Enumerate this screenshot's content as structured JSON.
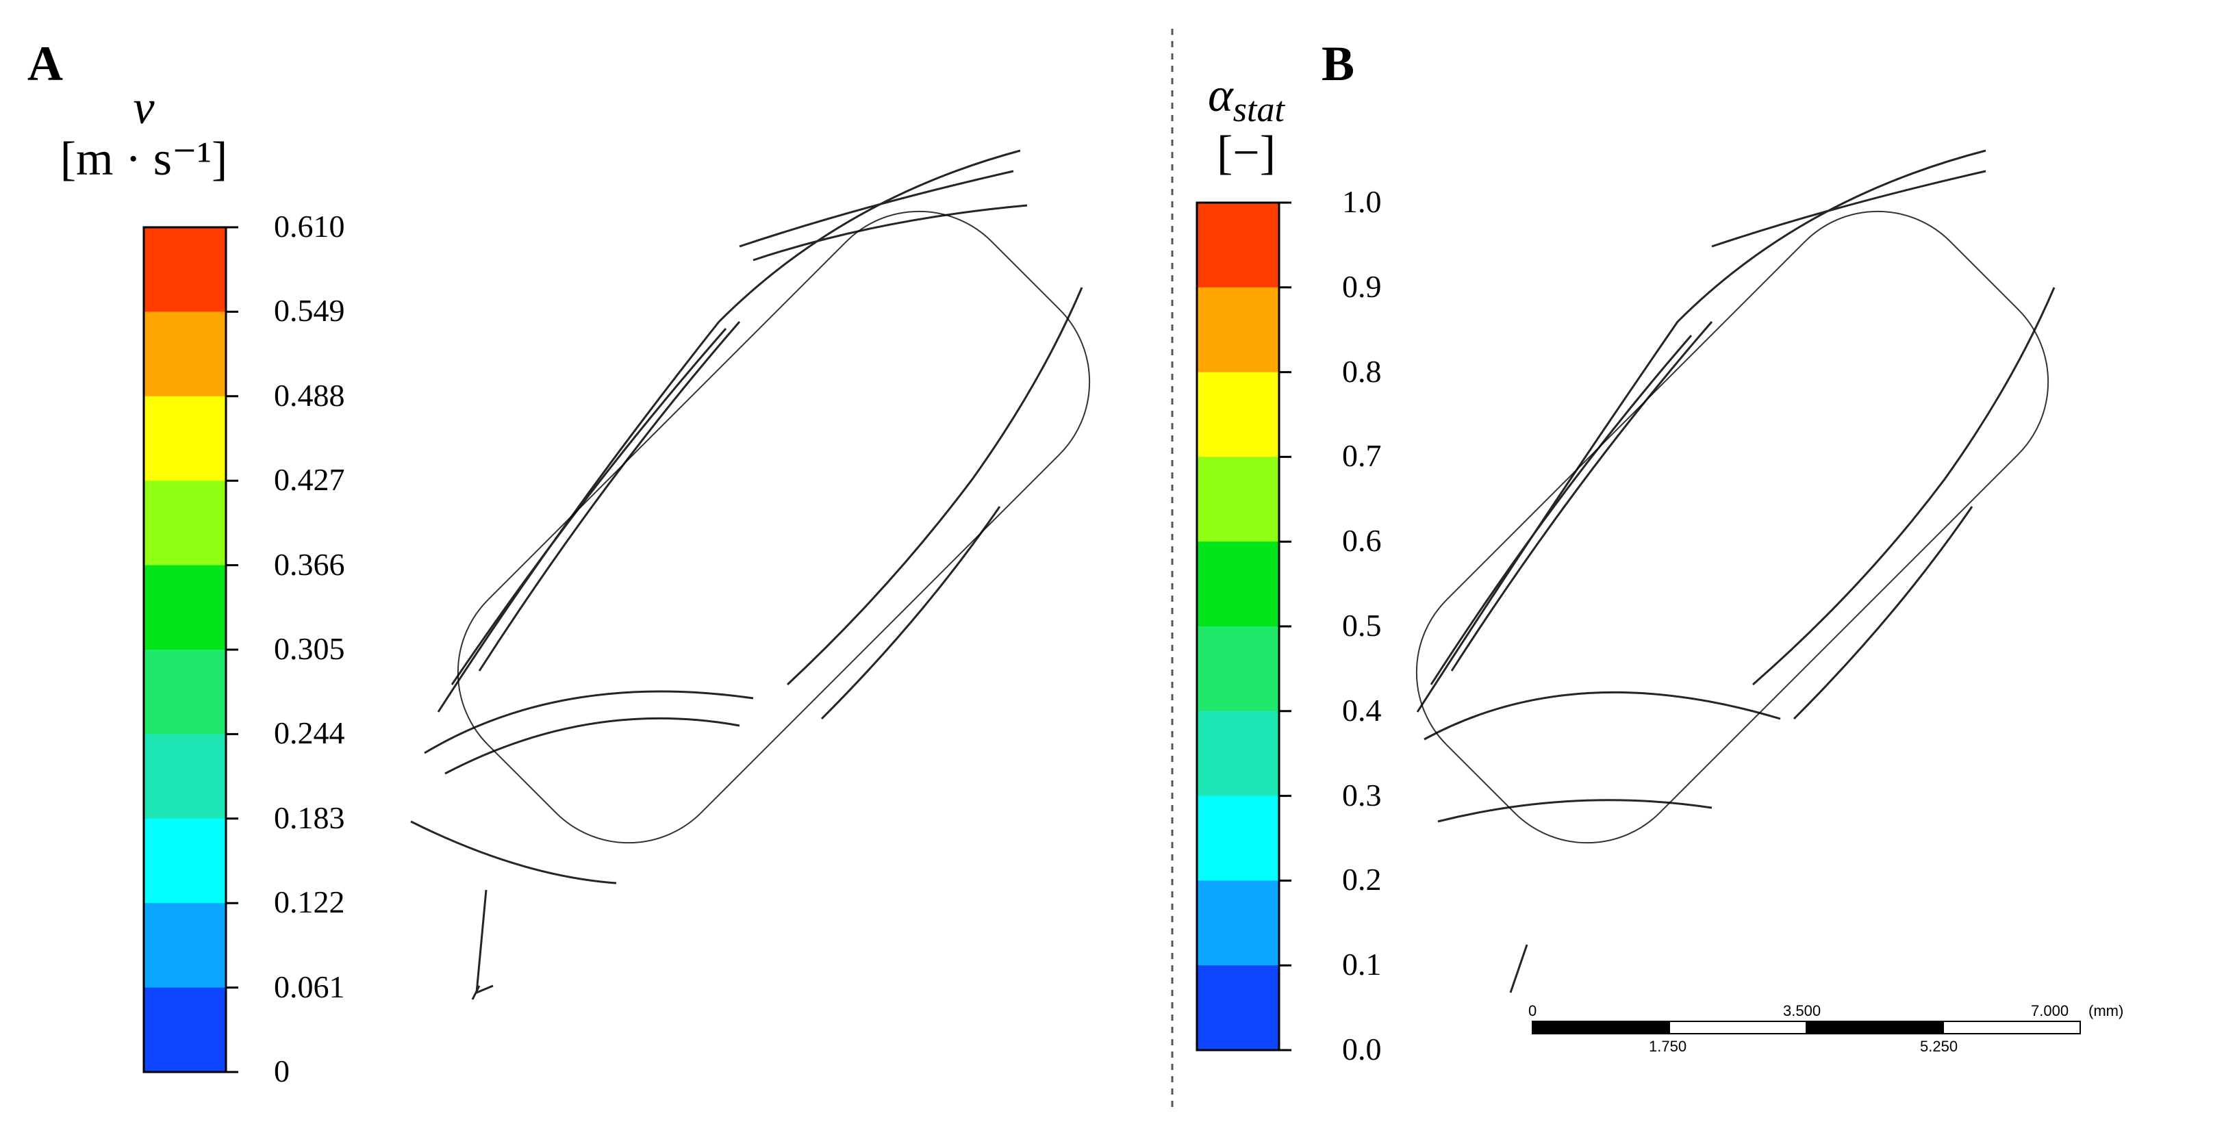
{
  "panels": [
    {
      "letter": "A",
      "colorbar": {
        "title_symbol": "v",
        "title_unit": "[m · s⁻¹]",
        "ticks": [
          "0.610",
          "0.549",
          "0.488",
          "0.427",
          "0.366",
          "0.305",
          "0.244",
          "0.183",
          "0.122",
          "0.061",
          "0"
        ]
      }
    },
    {
      "letter": "B",
      "colorbar": {
        "title_symbol": "α",
        "title_subscript": "stat",
        "title_unit": "[−]",
        "ticks": [
          "1.0",
          "0.9",
          "0.8",
          "0.7",
          "0.6",
          "0.5",
          "0.4",
          "0.3",
          "0.2",
          "0.1",
          "0.0"
        ]
      }
    }
  ],
  "colormap_top_to_bottom": [
    "#ff3d00",
    "#ffa500",
    "#ffff00",
    "#8fff14",
    "#00e61a",
    "#1fe86b",
    "#1ee6b4",
    "#00ffff",
    "#0aa6ff",
    "#0f45ff"
  ],
  "scale_bar": {
    "top_labels": [
      "0",
      "3.500",
      "7.000",
      "(mm)"
    ],
    "bottom_labels": [
      "1.750",
      "5.250"
    ]
  }
}
